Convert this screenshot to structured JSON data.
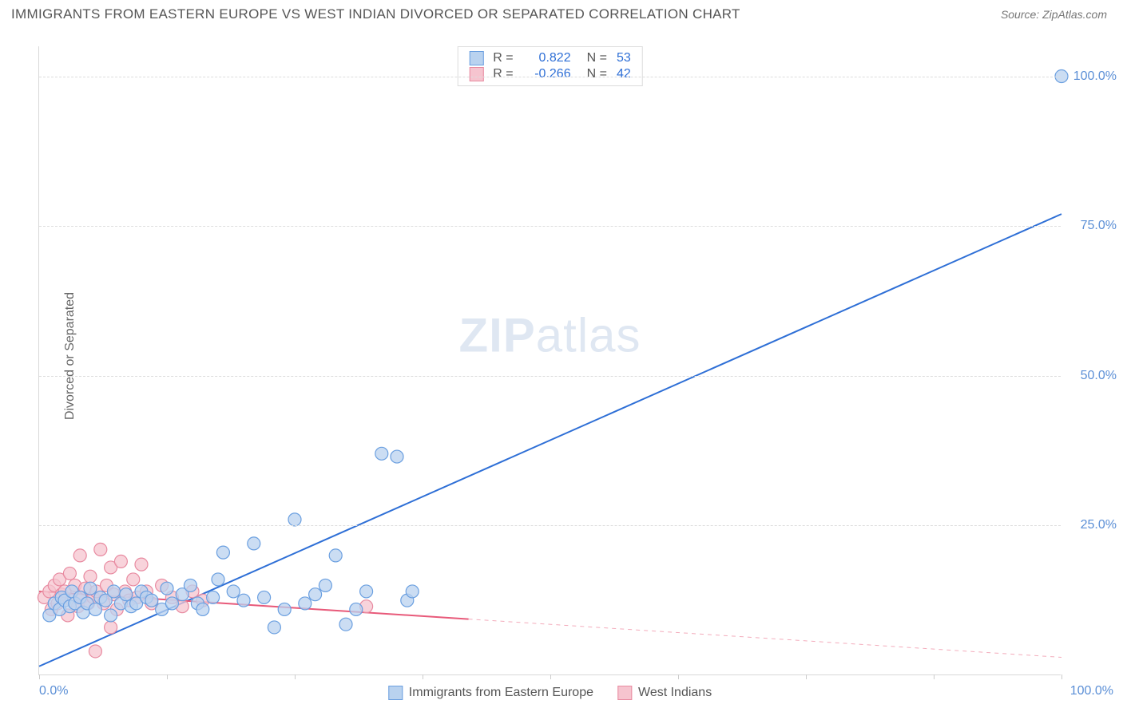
{
  "header": {
    "title": "IMMIGRANTS FROM EASTERN EUROPE VS WEST INDIAN DIVORCED OR SEPARATED CORRELATION CHART",
    "source": "Source: ZipAtlas.com"
  },
  "chart": {
    "type": "scatter",
    "ylabel": "Divorced or Separated",
    "watermark_zip": "ZIP",
    "watermark_atlas": "atlas",
    "xlim": [
      0,
      100
    ],
    "ylim": [
      0,
      105
    ],
    "xtick_positions": [
      0,
      12.5,
      25,
      37.5,
      50,
      62.5,
      75,
      87.5,
      100
    ],
    "xticklabels": {
      "min": "0.0%",
      "max": "100.0%"
    },
    "gridlines": [
      {
        "y": 25,
        "label": "25.0%"
      },
      {
        "y": 50,
        "label": "50.0%"
      },
      {
        "y": 75,
        "label": "75.0%"
      },
      {
        "y": 100,
        "label": "100.0%"
      }
    ],
    "grid_color": "#dddddd",
    "background_color": "#ffffff",
    "marker_radius": 8,
    "marker_stroke_width": 1.2,
    "line_width": 2,
    "series": [
      {
        "name": "Immigrants from Eastern Europe",
        "fill": "#b9d2ef",
        "stroke": "#6a9fe0",
        "line_color": "#2e6fd6",
        "R": "0.822",
        "N": "53",
        "trend": {
          "x1": 0,
          "y1": 1.5,
          "x2": 100,
          "y2": 77,
          "dashed_from_x": null
        },
        "points": [
          [
            1,
            10
          ],
          [
            1.5,
            12
          ],
          [
            2,
            11
          ],
          [
            2.2,
            13
          ],
          [
            2.5,
            12.5
          ],
          [
            3,
            11.5
          ],
          [
            3.2,
            14
          ],
          [
            3.5,
            12
          ],
          [
            4,
            13
          ],
          [
            4.3,
            10.5
          ],
          [
            4.7,
            12
          ],
          [
            5,
            14.5
          ],
          [
            5.5,
            11
          ],
          [
            6,
            13
          ],
          [
            6.5,
            12.5
          ],
          [
            7,
            10
          ],
          [
            7.3,
            14
          ],
          [
            8,
            12
          ],
          [
            8.5,
            13.5
          ],
          [
            9,
            11.5
          ],
          [
            9.5,
            12
          ],
          [
            10,
            14
          ],
          [
            10.5,
            13
          ],
          [
            11,
            12.5
          ],
          [
            12,
            11
          ],
          [
            12.5,
            14.5
          ],
          [
            13,
            12
          ],
          [
            14,
            13.5
          ],
          [
            14.8,
            15
          ],
          [
            15.5,
            12
          ],
          [
            16,
            11
          ],
          [
            17,
            13
          ],
          [
            17.5,
            16
          ],
          [
            18,
            20.5
          ],
          [
            19,
            14
          ],
          [
            20,
            12.5
          ],
          [
            21,
            22
          ],
          [
            22,
            13
          ],
          [
            23,
            8
          ],
          [
            24,
            11
          ],
          [
            25,
            26
          ],
          [
            26,
            12
          ],
          [
            27,
            13.5
          ],
          [
            28,
            15
          ],
          [
            29,
            20
          ],
          [
            30,
            8.5
          ],
          [
            31,
            11
          ],
          [
            32,
            14
          ],
          [
            33.5,
            37
          ],
          [
            35,
            36.5
          ],
          [
            36,
            12.5
          ],
          [
            36.5,
            14
          ],
          [
            100,
            100
          ]
        ]
      },
      {
        "name": "West Indians",
        "fill": "#f6c4cf",
        "stroke": "#e88aa0",
        "line_color": "#e85a7a",
        "R": "-0.266",
        "N": "42",
        "trend": {
          "x1": 0,
          "y1": 14,
          "x2": 100,
          "y2": 3,
          "dashed_from_x": 42
        },
        "points": [
          [
            0.5,
            13
          ],
          [
            1,
            14
          ],
          [
            1.2,
            11
          ],
          [
            1.5,
            15
          ],
          [
            1.8,
            12
          ],
          [
            2,
            16
          ],
          [
            2.2,
            13.5
          ],
          [
            2.5,
            14
          ],
          [
            2.8,
            10
          ],
          [
            3,
            17
          ],
          [
            3.2,
            12.5
          ],
          [
            3.5,
            15
          ],
          [
            3.8,
            11.5
          ],
          [
            4,
            20
          ],
          [
            4.2,
            13
          ],
          [
            4.5,
            14.5
          ],
          [
            4.8,
            12
          ],
          [
            5,
            16.5
          ],
          [
            5.3,
            13
          ],
          [
            5.6,
            14
          ],
          [
            6,
            21
          ],
          [
            6.3,
            12
          ],
          [
            6.6,
            15
          ],
          [
            7,
            18
          ],
          [
            7.3,
            13.5
          ],
          [
            7.6,
            11
          ],
          [
            8,
            19
          ],
          [
            8.4,
            14
          ],
          [
            8.8,
            12.5
          ],
          [
            9.2,
            16
          ],
          [
            9.6,
            13
          ],
          [
            10,
            18.5
          ],
          [
            10.5,
            14
          ],
          [
            11,
            12
          ],
          [
            12,
            15
          ],
          [
            13,
            13
          ],
          [
            14,
            11.5
          ],
          [
            15,
            14
          ],
          [
            16,
            12.5
          ],
          [
            5.5,
            4
          ],
          [
            7,
            8
          ],
          [
            32,
            11.5
          ]
        ]
      }
    ],
    "legend_top": {
      "R_label": "R =",
      "N_label": "N ="
    },
    "legend_bottom": [
      {
        "label": "Immigrants from Eastern Europe",
        "fill": "#b9d2ef",
        "stroke": "#6a9fe0"
      },
      {
        "label": "West Indians",
        "fill": "#f6c4cf",
        "stroke": "#e88aa0"
      }
    ]
  }
}
